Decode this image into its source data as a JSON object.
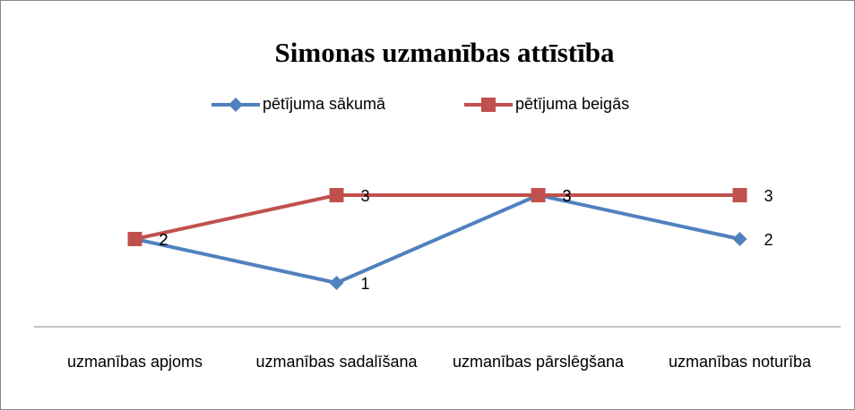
{
  "chart_data": {
    "type": "line",
    "title": "Simonas uzmanības attīstība",
    "categories": [
      "uzmanības apjoms",
      "uzmanības sadalīšana",
      "uzmanības pārslēgšana",
      "uzmanības noturība"
    ],
    "series": [
      {
        "name": "pētījuma sākumā",
        "color": "#4f81bd",
        "marker": "diamond",
        "values": [
          2,
          1,
          3,
          2
        ]
      },
      {
        "name": "pētījuma beigās",
        "color": "#c0504d",
        "marker": "square",
        "values": [
          2,
          3,
          3,
          3
        ]
      }
    ],
    "ylim": [
      0,
      3.5
    ],
    "data_labels": true,
    "legend": "top"
  }
}
